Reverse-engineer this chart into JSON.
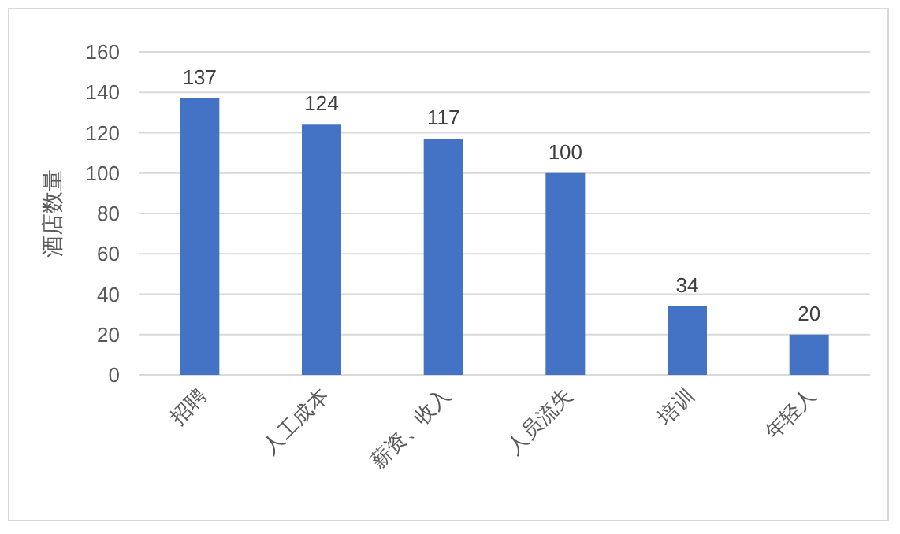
{
  "chart_data": {
    "type": "bar",
    "ylabel": "酒店数量",
    "categories": [
      "招聘",
      "人工成本",
      "薪资、收入",
      "人员流失",
      "培训",
      "年轻人"
    ],
    "values": [
      137,
      124,
      117,
      100,
      34,
      20
    ],
    "color": "#4472c4",
    "ylim": [
      0,
      160
    ],
    "yticks": [
      0,
      20,
      40,
      60,
      80,
      100,
      120,
      140,
      160
    ],
    "grid": "y",
    "data_labels": true
  }
}
